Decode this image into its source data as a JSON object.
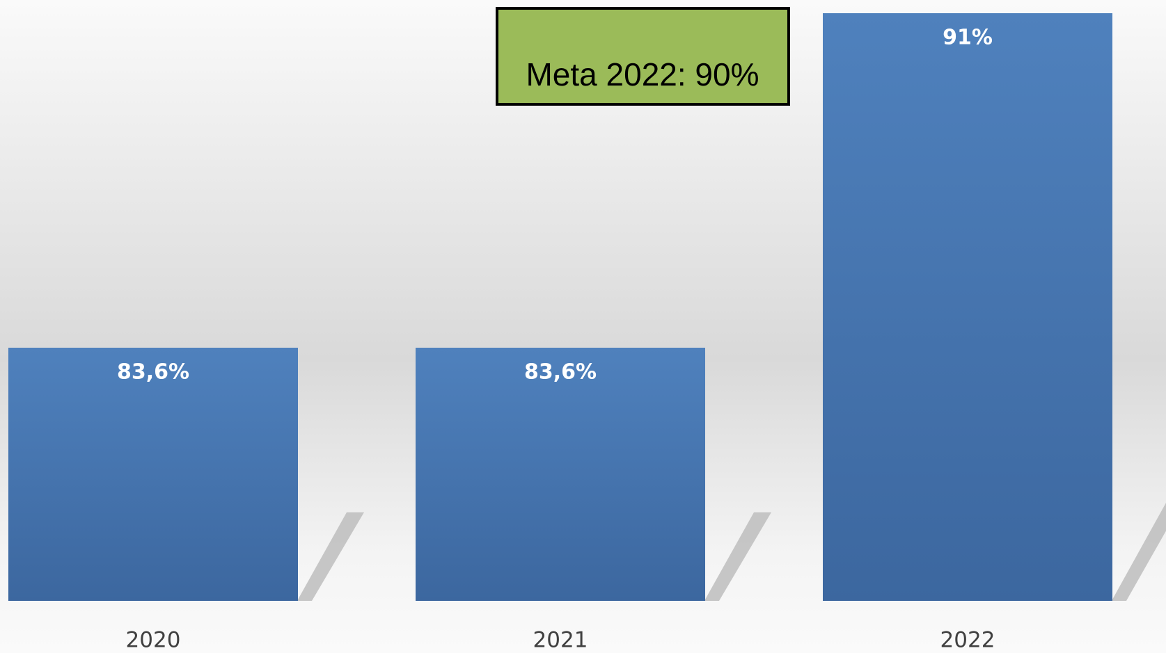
{
  "chart_data": {
    "type": "bar",
    "annotation": "Meta 2022: 90%",
    "categories": [
      "2020",
      "2021",
      "2022"
    ],
    "values": [
      83.6,
      83.6,
      91
    ],
    "value_labels": [
      "83,6%",
      "83,6%",
      "91%"
    ],
    "color": "#4f81bd",
    "ylim": [
      78,
      91
    ]
  }
}
